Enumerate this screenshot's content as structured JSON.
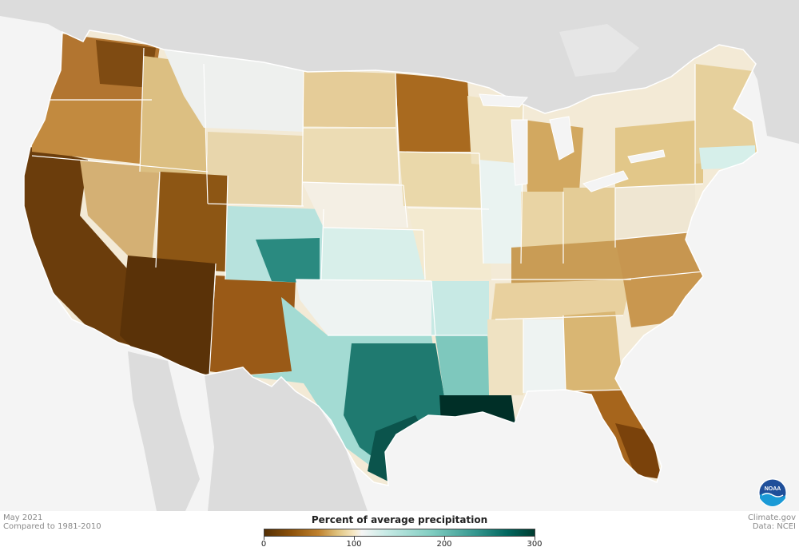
{
  "map": {
    "period": "May 2021",
    "baseline": "Compared to 1981-2010",
    "legend": {
      "title": "Percent of average precipitation",
      "ticks": [
        "0",
        "100",
        "200",
        "300"
      ],
      "colors": [
        "#543005",
        "#8c510a",
        "#bf812d",
        "#dfc27d",
        "#f6e8c3",
        "#f5f5f5",
        "#c7eae5",
        "#80cdc1",
        "#35978f",
        "#01665e",
        "#003c30"
      ]
    },
    "credit": {
      "site": "Climate.gov",
      "source": "Data: NCEI"
    },
    "logo": {
      "text": "NOAA",
      "icon": "noaa-logo-icon"
    },
    "colors": {
      "land": "#dcdcdc",
      "water": "#f4f4f4",
      "border": "#ffffff"
    }
  }
}
